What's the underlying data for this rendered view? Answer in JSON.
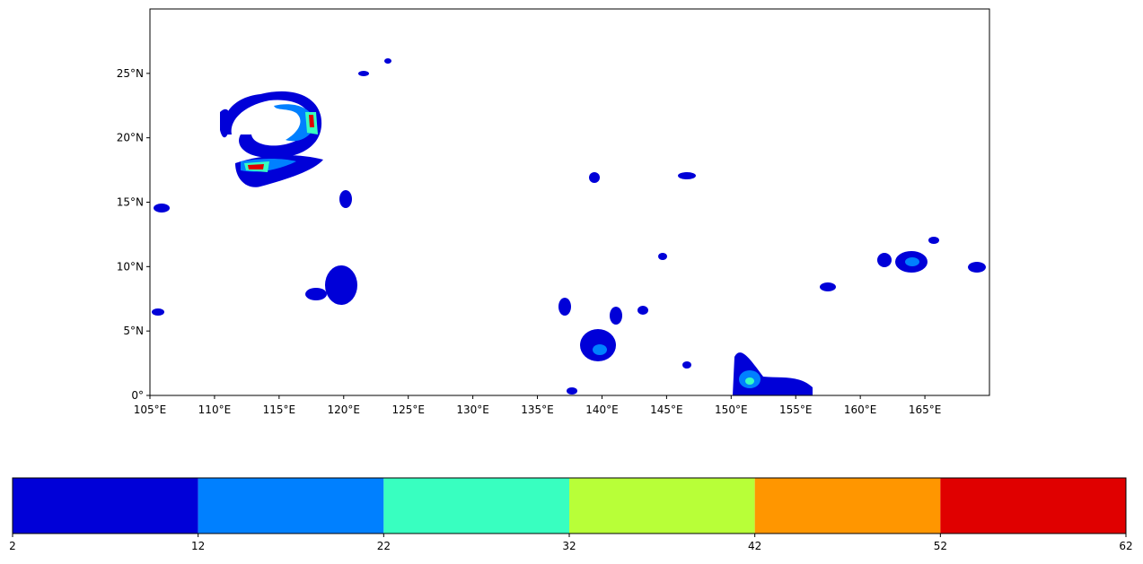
{
  "map": {
    "xlim": [
      105,
      170
    ],
    "ylim": [
      0,
      30
    ],
    "xticks": [
      {
        "value": 105,
        "label": "105°E"
      },
      {
        "value": 110,
        "label": "110°E"
      },
      {
        "value": 115,
        "label": "115°E"
      },
      {
        "value": 120,
        "label": "120°E"
      },
      {
        "value": 125,
        "label": "125°E"
      },
      {
        "value": 130,
        "label": "130°E"
      },
      {
        "value": 135,
        "label": "135°E"
      },
      {
        "value": 140,
        "label": "140°E"
      },
      {
        "value": 145,
        "label": "145°E"
      },
      {
        "value": 150,
        "label": "150°E"
      },
      {
        "value": 155,
        "label": "155°E"
      },
      {
        "value": 160,
        "label": "160°E"
      },
      {
        "value": 165,
        "label": "165°E"
      }
    ],
    "yticks": [
      {
        "value": 0,
        "label": "0°"
      },
      {
        "value": 5,
        "label": "5°N"
      },
      {
        "value": 10,
        "label": "10°N"
      },
      {
        "value": 15,
        "label": "15°N"
      },
      {
        "value": 20,
        "label": "20°N"
      },
      {
        "value": 25,
        "label": "25°N"
      }
    ]
  },
  "colorbar": {
    "bounds": [
      2,
      12,
      22,
      32,
      42,
      52,
      62
    ],
    "colors": [
      "#0000d8",
      "#0080ff",
      "#38ffc0",
      "#b8ff38",
      "#ff9600",
      "#e00000"
    ]
  }
}
